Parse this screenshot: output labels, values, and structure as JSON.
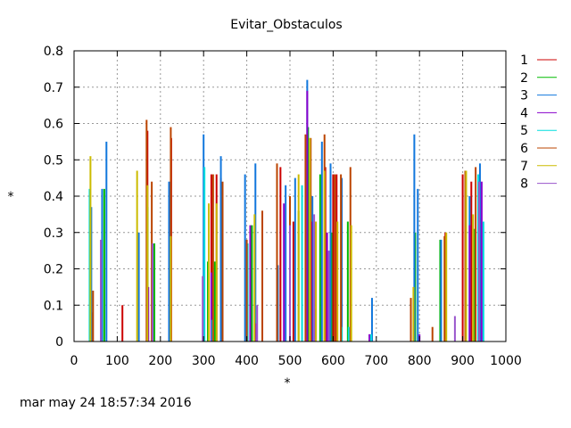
{
  "chart_data": {
    "type": "bar",
    "title": "Evitar_Obstaculos",
    "xlabel": "*",
    "ylabel": "*",
    "xlim": [
      0,
      1000
    ],
    "ylim": [
      0,
      0.8
    ],
    "xticks": [
      "0",
      "100",
      "200",
      "300",
      "400",
      "500",
      "600",
      "700",
      "800",
      "900",
      "1000"
    ],
    "yticks": [
      "0",
      "0.1",
      "0.2",
      "0.3",
      "0.4",
      "0.5",
      "0.6",
      "0.7",
      "0.8"
    ],
    "grid": true,
    "legend_position": "right",
    "series": [
      {
        "name": "1",
        "color": "#cc0000",
        "values": [
          [
            40,
            0.08
          ],
          [
            112,
            0.1
          ],
          [
            170,
            0.58
          ],
          [
            225,
            0.56
          ],
          [
            318,
            0.46
          ],
          [
            330,
            0.46
          ],
          [
            340,
            0.45
          ],
          [
            478,
            0.48
          ],
          [
            508,
            0.33
          ],
          [
            546,
            0.5
          ],
          [
            582,
            0.48
          ],
          [
            600,
            0.46
          ],
          [
            608,
            0.46
          ],
          [
            860,
            0.3
          ],
          [
            900,
            0.46
          ],
          [
            920,
            0.44
          ]
        ]
      },
      {
        "name": "2",
        "color": "#00bb00",
        "values": [
          [
            70,
            0.42
          ],
          [
            170,
            0.37
          ],
          [
            186,
            0.27
          ],
          [
            310,
            0.22
          ],
          [
            326,
            0.22
          ],
          [
            412,
            0.32
          ],
          [
            520,
            0.36
          ],
          [
            542,
            0.59
          ],
          [
            570,
            0.46
          ],
          [
            596,
            0.3
          ],
          [
            634,
            0.33
          ],
          [
            790,
            0.3
          ],
          [
            848,
            0.28
          ],
          [
            928,
            0.31
          ],
          [
            940,
            0.34
          ]
        ]
      },
      {
        "name": "3",
        "color": "#1177dd",
        "values": [
          [
            40,
            0.37
          ],
          [
            65,
            0.42
          ],
          [
            75,
            0.55
          ],
          [
            150,
            0.3
          ],
          [
            220,
            0.44
          ],
          [
            300,
            0.57
          ],
          [
            340,
            0.51
          ],
          [
            396,
            0.46
          ],
          [
            420,
            0.49
          ],
          [
            472,
            0.21
          ],
          [
            490,
            0.43
          ],
          [
            512,
            0.45
          ],
          [
            540,
            0.72
          ],
          [
            552,
            0.4
          ],
          [
            574,
            0.55
          ],
          [
            594,
            0.49
          ],
          [
            620,
            0.45
          ],
          [
            690,
            0.12
          ],
          [
            788,
            0.57
          ],
          [
            796,
            0.42
          ],
          [
            850,
            0.28
          ],
          [
            916,
            0.4
          ],
          [
            940,
            0.49
          ]
        ]
      },
      {
        "name": "4",
        "color": "#8800cc",
        "values": [
          [
            172,
            0.15
          ],
          [
            318,
            0.19
          ],
          [
            408,
            0.32
          ],
          [
            420,
            0.05
          ],
          [
            486,
            0.38
          ],
          [
            540,
            0.69
          ],
          [
            550,
            0.33
          ],
          [
            560,
            0.09
          ],
          [
            586,
            0.3
          ],
          [
            684,
            0.02
          ],
          [
            800,
            0.02
          ],
          [
            916,
            0.32
          ],
          [
            944,
            0.44
          ]
        ]
      },
      {
        "name": "5",
        "color": "#00dddd",
        "values": [
          [
            36,
            0.42
          ],
          [
            302,
            0.48
          ],
          [
            320,
            0.06
          ],
          [
            402,
            0.27
          ],
          [
            528,
            0.43
          ],
          [
            620,
            0.04
          ],
          [
            636,
            0.04
          ],
          [
            688,
            0.02
          ],
          [
            936,
            0.46
          ],
          [
            948,
            0.33
          ]
        ]
      },
      {
        "name": "6",
        "color": "#bb4400",
        "values": [
          [
            44,
            0.14
          ],
          [
            168,
            0.61
          ],
          [
            180,
            0.44
          ],
          [
            224,
            0.59
          ],
          [
            322,
            0.46
          ],
          [
            344,
            0.44
          ],
          [
            400,
            0.28
          ],
          [
            436,
            0.36
          ],
          [
            470,
            0.49
          ],
          [
            500,
            0.4
          ],
          [
            536,
            0.57
          ],
          [
            548,
            0.56
          ],
          [
            580,
            0.57
          ],
          [
            604,
            0.46
          ],
          [
            618,
            0.46
          ],
          [
            640,
            0.48
          ],
          [
            780,
            0.12
          ],
          [
            830,
            0.04
          ],
          [
            858,
            0.29
          ],
          [
            906,
            0.47
          ],
          [
            930,
            0.48
          ]
        ]
      },
      {
        "name": "7",
        "color": "#ccbb00",
        "values": [
          [
            38,
            0.51
          ],
          [
            146,
            0.47
          ],
          [
            170,
            0.43
          ],
          [
            224,
            0.29
          ],
          [
            312,
            0.38
          ],
          [
            330,
            0.38
          ],
          [
            418,
            0.35
          ],
          [
            520,
            0.46
          ],
          [
            546,
            0.56
          ],
          [
            560,
            0.33
          ],
          [
            580,
            0.47
          ],
          [
            610,
            0.33
          ],
          [
            642,
            0.32
          ],
          [
            786,
            0.15
          ],
          [
            862,
            0.3
          ],
          [
            908,
            0.47
          ],
          [
            924,
            0.35
          ]
        ]
      },
      {
        "name": "8",
        "color": "#9955cc",
        "values": [
          [
            62,
            0.28
          ],
          [
            182,
            0.27
          ],
          [
            298,
            0.18
          ],
          [
            424,
            0.1
          ],
          [
            500,
            0.32
          ],
          [
            556,
            0.35
          ],
          [
            590,
            0.25
          ],
          [
            882,
            0.07
          ],
          [
            938,
            0.44
          ]
        ]
      }
    ]
  },
  "footer": {
    "timestamp": "mar may 24 18:57:34 2016"
  }
}
